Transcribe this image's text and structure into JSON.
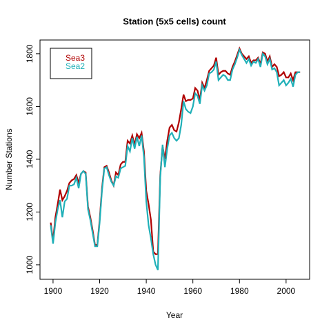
{
  "chart_data": {
    "type": "line",
    "title": "Station (5x5 cells) count",
    "x_label": "Year",
    "y_label": "Number Stations",
    "x": [
      1899,
      1900,
      1901,
      1902,
      1903,
      1904,
      1905,
      1906,
      1907,
      1908,
      1909,
      1910,
      1911,
      1912,
      1913,
      1914,
      1915,
      1916,
      1917,
      1918,
      1919,
      1920,
      1921,
      1922,
      1923,
      1924,
      1925,
      1926,
      1927,
      1928,
      1929,
      1930,
      1931,
      1932,
      1933,
      1934,
      1935,
      1936,
      1937,
      1938,
      1939,
      1940,
      1941,
      1942,
      1943,
      1944,
      1945,
      1946,
      1947,
      1948,
      1949,
      1950,
      1951,
      1952,
      1953,
      1954,
      1955,
      1956,
      1957,
      1958,
      1959,
      1960,
      1961,
      1962,
      1963,
      1964,
      1965,
      1966,
      1967,
      1968,
      1969,
      1970,
      1971,
      1972,
      1973,
      1974,
      1975,
      1976,
      1977,
      1978,
      1979,
      1980,
      1981,
      1982,
      1983,
      1984,
      1985,
      1986,
      1987,
      1988,
      1989,
      1990,
      1991,
      1992,
      1993,
      1994,
      1995,
      1996,
      1997,
      1998,
      1999,
      2000,
      2001,
      2002,
      2003,
      2004,
      2005,
      2006
    ],
    "series": [
      {
        "name": "Sea3",
        "color": "#b00000",
        "values": [
          1160,
          1090,
          1180,
          1230,
          1285,
          1245,
          1260,
          1280,
          1310,
          1320,
          1325,
          1340,
          1310,
          1345,
          1355,
          1350,
          1220,
          1180,
          1130,
          1075,
          1075,
          1170,
          1290,
          1370,
          1375,
          1350,
          1320,
          1300,
          1350,
          1340,
          1380,
          1390,
          1390,
          1470,
          1460,
          1490,
          1455,
          1495,
          1480,
          1500,
          1430,
          1280,
          1230,
          1170,
          1050,
          1040,
          1040,
          1340,
          1450,
          1400,
          1470,
          1520,
          1530,
          1510,
          1505,
          1540,
          1590,
          1645,
          1620,
          1625,
          1625,
          1630,
          1670,
          1660,
          1625,
          1690,
          1670,
          1700,
          1735,
          1745,
          1755,
          1785,
          1720,
          1730,
          1735,
          1735,
          1725,
          1720,
          1750,
          1770,
          1795,
          1820,
          1800,
          1790,
          1780,
          1790,
          1765,
          1775,
          1775,
          1785,
          1760,
          1805,
          1800,
          1770,
          1790,
          1750,
          1760,
          1750,
          1715,
          1720,
          1730,
          1710,
          1710,
          1725,
          1700,
          1730,
          1730,
          1730
        ]
      },
      {
        "name": "Sea2",
        "color": "#20b0b8",
        "values": [
          1150,
          1080,
          1160,
          1210,
          1245,
          1180,
          1240,
          1250,
          1300,
          1300,
          1305,
          1330,
          1290,
          1345,
          1355,
          1345,
          1210,
          1170,
          1120,
          1070,
          1070,
          1160,
          1280,
          1365,
          1370,
          1340,
          1315,
          1300,
          1335,
          1330,
          1365,
          1370,
          1375,
          1450,
          1430,
          1480,
          1440,
          1485,
          1450,
          1490,
          1410,
          1240,
          1150,
          1100,
          1040,
          1000,
          980,
          1330,
          1455,
          1370,
          1440,
          1490,
          1500,
          1480,
          1470,
          1480,
          1530,
          1620,
          1590,
          1580,
          1575,
          1600,
          1650,
          1640,
          1610,
          1680,
          1660,
          1680,
          1725,
          1730,
          1740,
          1770,
          1700,
          1710,
          1720,
          1715,
          1700,
          1700,
          1740,
          1760,
          1785,
          1815,
          1795,
          1780,
          1765,
          1780,
          1755,
          1770,
          1765,
          1780,
          1750,
          1800,
          1790,
          1760,
          1780,
          1740,
          1745,
          1730,
          1680,
          1690,
          1700,
          1680,
          1690,
          1705,
          1675,
          1720,
          1730,
          1730
        ]
      }
    ],
    "xlim": [
      1894.4,
      2010.1
    ],
    "ylim": [
      945,
      1852
    ],
    "xticks": [
      1900,
      1920,
      1940,
      1960,
      1980,
      2000
    ],
    "yticks": [
      1000,
      1200,
      1400,
      1600,
      1800
    ],
    "legend": "top-left"
  }
}
